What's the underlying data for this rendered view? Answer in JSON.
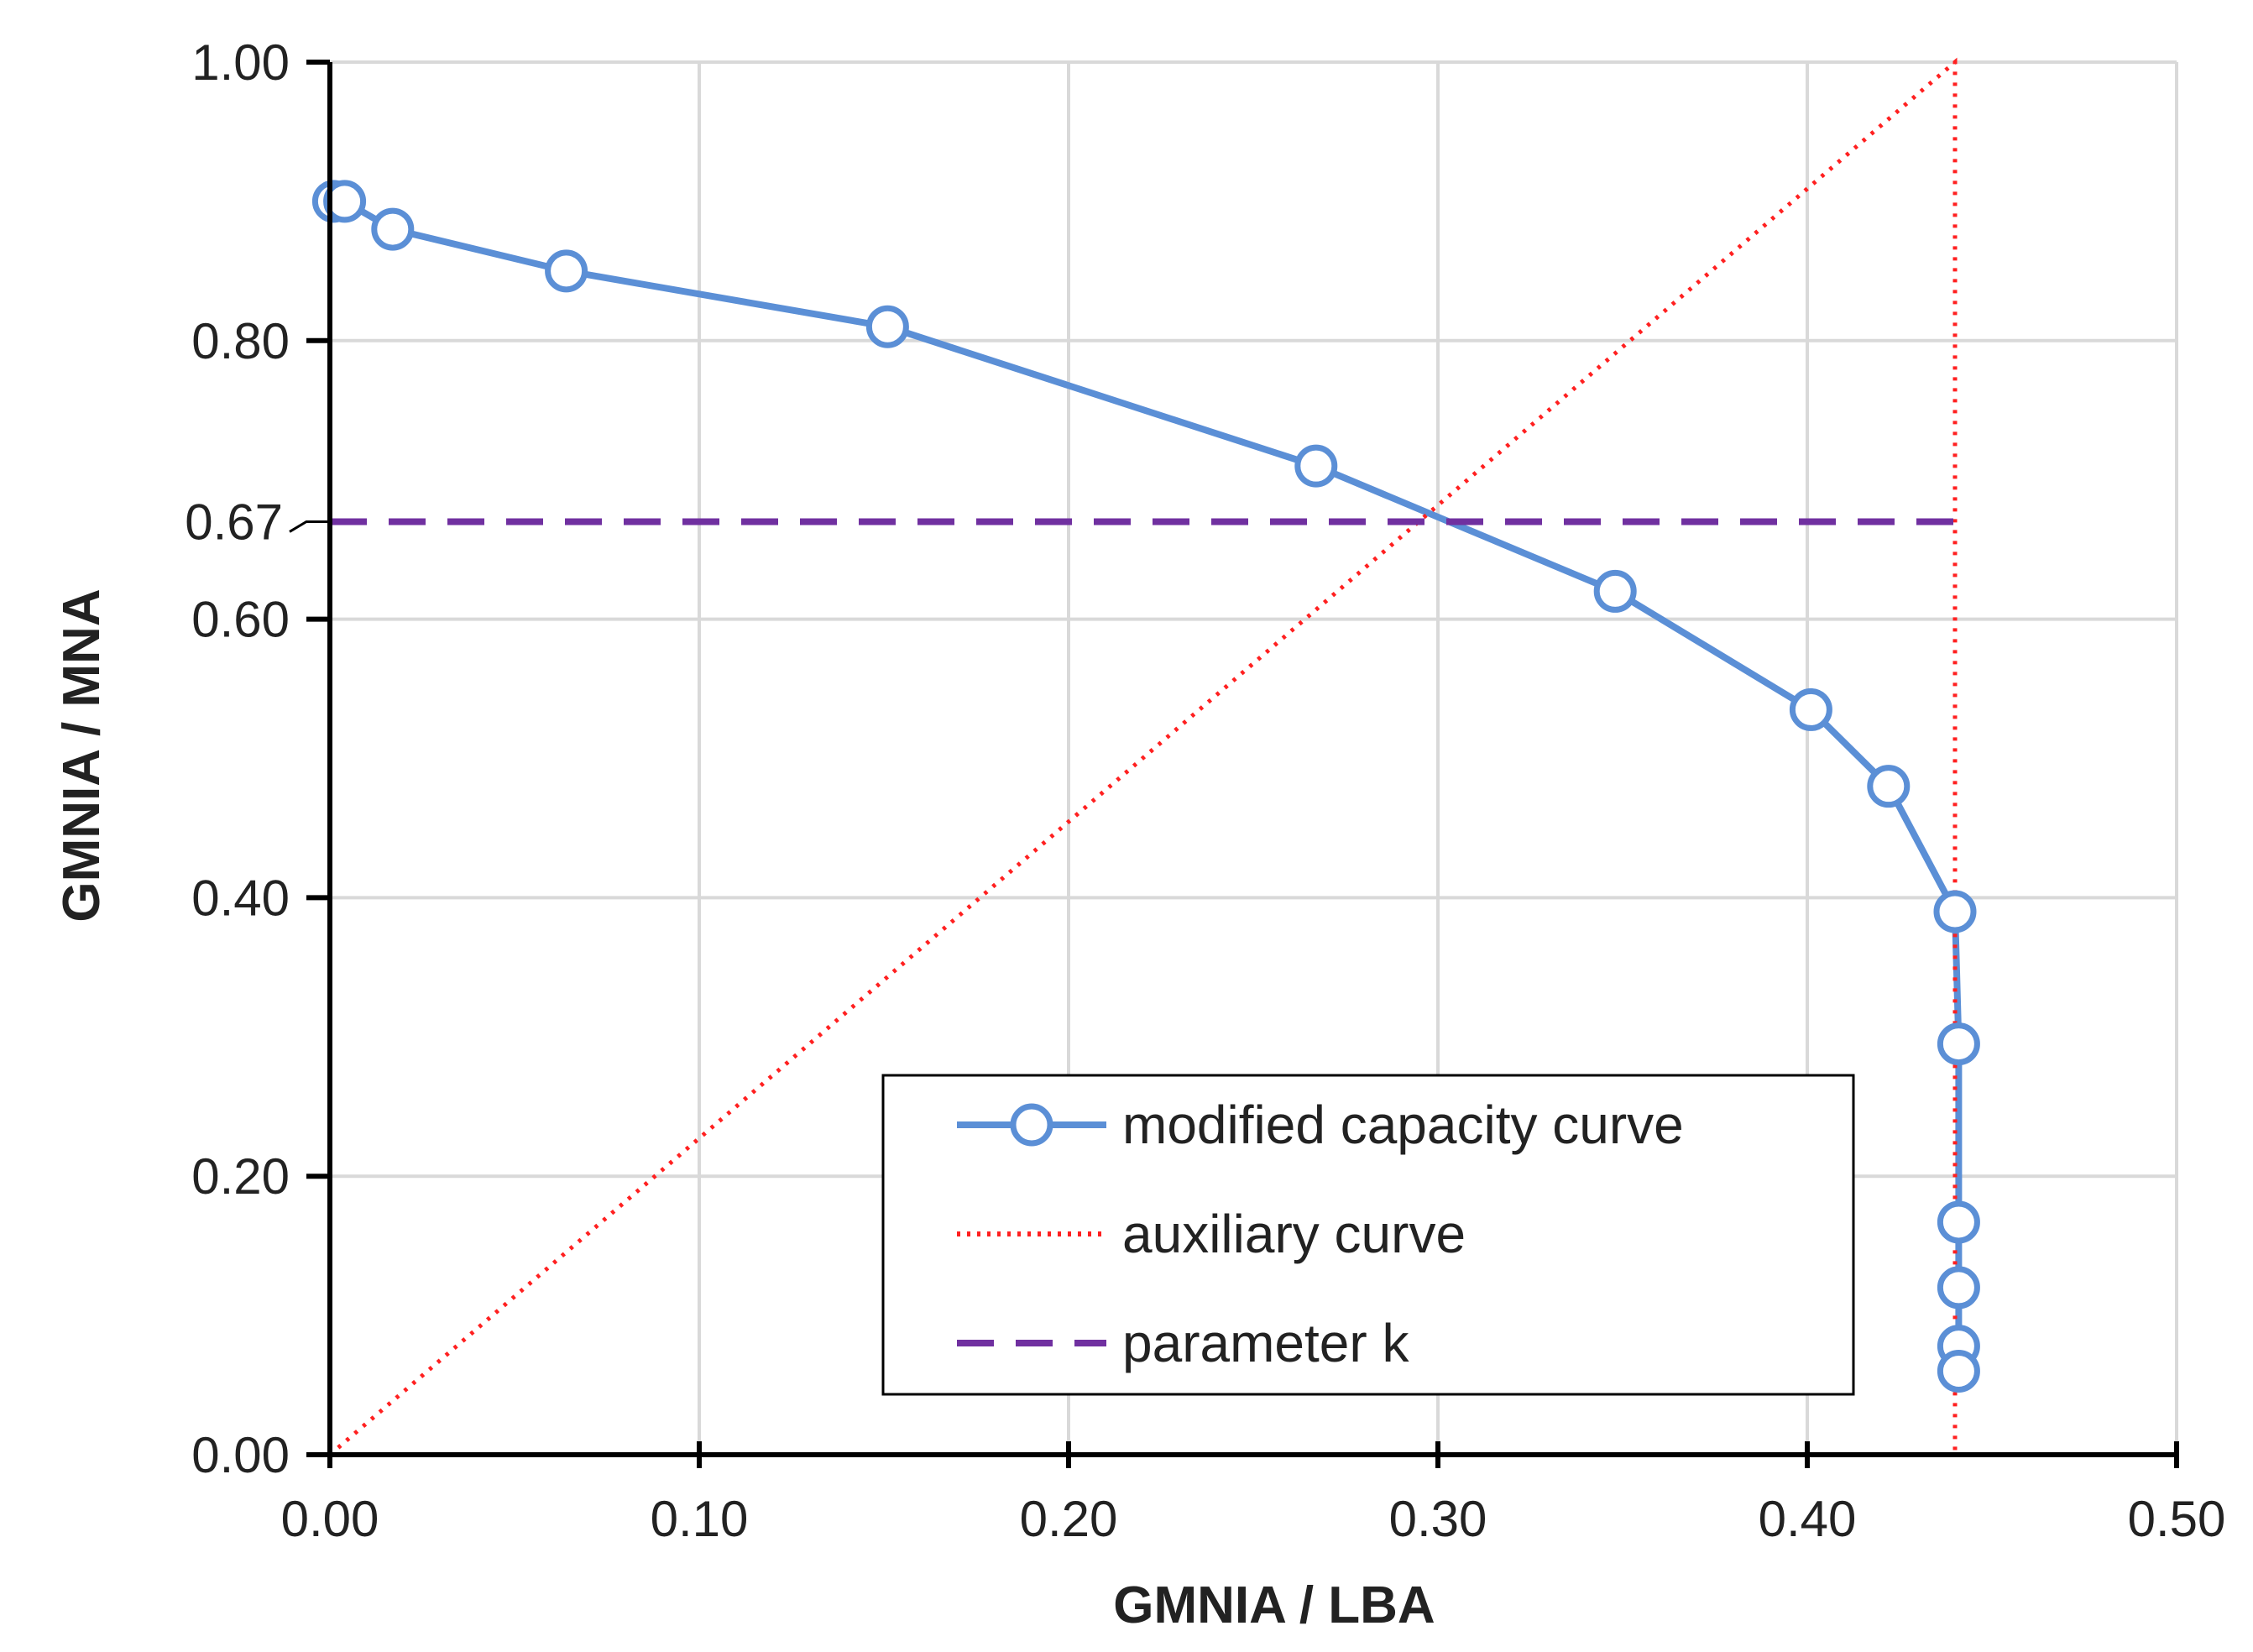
{
  "chart_data": {
    "type": "line",
    "xlabel": "GMNIA / LBA",
    "ylabel": "GMNIA / MNA",
    "xlim": [
      0,
      0.5
    ],
    "ylim": [
      0,
      1
    ],
    "x_ticks": [
      "0.00",
      "0.10",
      "0.20",
      "0.30",
      "0.40",
      "0.50"
    ],
    "y_ticks": [
      "0.00",
      "0.20",
      "0.40",
      "0.60",
      "0.80",
      "1.00"
    ],
    "extra_y_tick": {
      "value": 0.67,
      "label": "0.67"
    },
    "grid": true,
    "legend_position": "bottom-right",
    "series": [
      {
        "name": "modified capacity curve",
        "style": "solid-with-open-circles",
        "color": "#5B8FD6",
        "x": [
          0.001,
          0.004,
          0.017,
          0.064,
          0.151,
          0.267,
          0.348,
          0.401,
          0.422,
          0.44,
          0.441,
          0.441,
          0.441,
          0.441,
          0.441
        ],
        "y": [
          0.9,
          0.9,
          0.88,
          0.85,
          0.81,
          0.71,
          0.62,
          0.535,
          0.48,
          0.39,
          0.295,
          0.167,
          0.12,
          0.078,
          0.06
        ]
      },
      {
        "name": "auxiliary curve",
        "style": "dotted",
        "color": "#FF2020",
        "x": [
          0,
          0.44,
          0.44
        ],
        "y": [
          0,
          1.0,
          0
        ]
      },
      {
        "name": "parameter k",
        "style": "dashed",
        "color": "#7030A0",
        "x": [
          0,
          0.44
        ],
        "y": [
          0.67,
          0.67
        ]
      }
    ]
  }
}
